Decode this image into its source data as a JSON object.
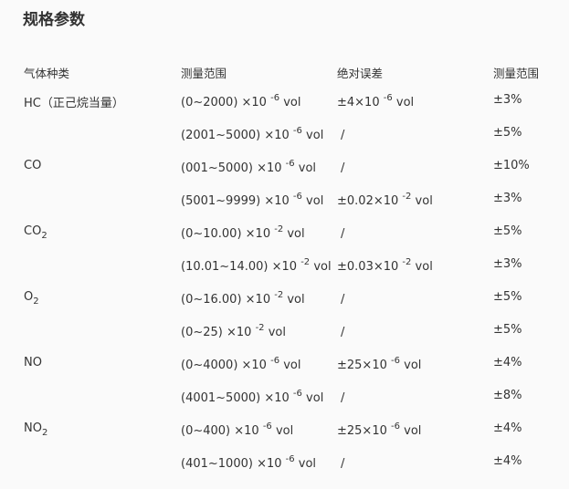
{
  "title": "规格参数",
  "headers": [
    "气体种类",
    "测量范围",
    "绝对误差",
    "测量范围"
  ],
  "rows": [
    {
      "gas": "HC（正己烷当量）",
      "gas_sub": "",
      "range": "(0~2000) ×10",
      "range_exp": "-6",
      "range_unit": "vol",
      "error": "±4×10",
      "error_exp": "-6",
      "error_unit": "vol",
      "rel": "±3%"
    },
    {
      "gas": "",
      "gas_sub": "",
      "range": "(2001~5000) ×10",
      "range_exp": "-6",
      "range_unit": "vol",
      "error": "/",
      "error_exp": "",
      "error_unit": "",
      "rel": "±5%"
    },
    {
      "gas": "CO",
      "gas_sub": "",
      "range": "(001~5000) ×10",
      "range_exp": "-6",
      "range_unit": "vol",
      "error": "/",
      "error_exp": "",
      "error_unit": "",
      "rel": "±10%"
    },
    {
      "gas": "",
      "gas_sub": "",
      "range": "(5001~9999) ×10",
      "range_exp": "-6",
      "range_unit": "vol",
      "error": "±0.02×10",
      "error_exp": "-2",
      "error_unit": "vol",
      "rel": "±3%"
    },
    {
      "gas": "CO",
      "gas_sub": "2",
      "range": "(0~10.00) ×10",
      "range_exp": "-2",
      "range_unit": "vol",
      "error": "/",
      "error_exp": "",
      "error_unit": "",
      "rel": "±5%"
    },
    {
      "gas": "",
      "gas_sub": "",
      "range": "(10.01~14.00) ×10",
      "range_exp": "-2",
      "range_unit": "vol",
      "error": "±0.03×10",
      "error_exp": "-2",
      "error_unit": "vol",
      "rel": "±3%"
    },
    {
      "gas": "O",
      "gas_sub": "2",
      "range": "(0~16.00) ×10",
      "range_exp": "-2",
      "range_unit": "vol",
      "error": "/",
      "error_exp": "",
      "error_unit": "",
      "rel": "±5%"
    },
    {
      "gas": "",
      "gas_sub": "",
      "range": "(0~25) ×10",
      "range_exp": "-2",
      "range_unit": "vol",
      "error": "/",
      "error_exp": "",
      "error_unit": "",
      "rel": "±5%"
    },
    {
      "gas": "NO",
      "gas_sub": "",
      "range": "(0~4000) ×10",
      "range_exp": "-6",
      "range_unit": "vol",
      "error": "±25×10",
      "error_exp": "-6",
      "error_unit": "vol",
      "rel": "±4%"
    },
    {
      "gas": "",
      "gas_sub": "",
      "range": "(4001~5000) ×10",
      "range_exp": "-6",
      "range_unit": "vol",
      "error": "/",
      "error_exp": "",
      "error_unit": "",
      "rel": "±8%"
    },
    {
      "gas": "NO",
      "gas_sub": "2",
      "range": "(0~400) ×10",
      "range_exp": "-6",
      "range_unit": "vol",
      "error": "±25×10",
      "error_exp": "-6",
      "error_unit": "vol",
      "rel": "±4%"
    },
    {
      "gas": "",
      "gas_sub": "",
      "range": "(401~1000) ×10",
      "range_exp": "-6",
      "range_unit": "vol",
      "error": "/",
      "error_exp": "",
      "error_unit": "",
      "rel": "±4%"
    }
  ]
}
